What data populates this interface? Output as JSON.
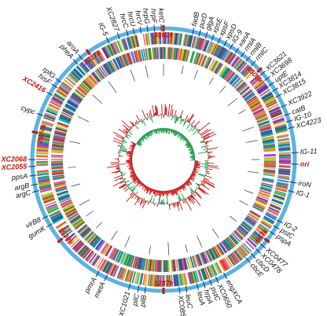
{
  "colors": {
    "outer_ring": "#5ab4e0",
    "marker": "#cc1111",
    "gc_skew_pos": "#cc1111",
    "gc_skew_neg": "#1a9a4a",
    "gc_content_pos": "#cc1111",
    "gc_content_neg": "#1a9a4a",
    "rna_tick": "#1a2a88",
    "gene_palette": [
      "#e23b3b",
      "#2b5fd9",
      "#22a35a",
      "#f2c230",
      "#9b47c9",
      "#f08a24",
      "#18b5c4",
      "#e05fb0",
      "#6b4a2b",
      "#8bc34a",
      "#3f3f9f",
      "#ff6f61",
      "#00897b",
      "#c0ca33",
      "#5d6d7e"
    ]
  },
  "positions": [
    {
      "text": "3861k",
      "angle": 0
    },
    {
      "text": "4505k",
      "angle": 47
    },
    {
      "text": "643k",
      "angle": 128
    },
    {
      "text": "1287k",
      "angle": 180
    },
    {
      "text": "1930k",
      "angle": 232
    },
    {
      "text": "2574k",
      "angle": 282
    },
    {
      "text": "3217k",
      "angle": 325
    }
  ],
  "red_genes": [
    {
      "text": "ori",
      "angle": 92
    },
    {
      "text": "XC2416",
      "angle": 300
    },
    {
      "text": "XC2068",
      "angle": 270
    },
    {
      "text": "XC2055",
      "angle": 267
    }
  ],
  "genes": [
    {
      "text": "fadB",
      "angle": 13
    },
    {
      "text": "purD",
      "angle": 16
    },
    {
      "text": "glgA",
      "angle": 19
    },
    {
      "text": "xpsE",
      "angle": 22
    },
    {
      "text": "xpsF",
      "angle": 25
    },
    {
      "text": "xpsD",
      "angle": 28
    },
    {
      "text": "IG-9",
      "angle": 31
    },
    {
      "text": "xanA",
      "angle": 34
    },
    {
      "text": "rmlA",
      "angle": 37
    },
    {
      "text": "rmlB",
      "angle": 40
    },
    {
      "text": "rmlC",
      "angle": 43
    },
    {
      "text": "XC3621",
      "angle": 49
    },
    {
      "text": "XC3698",
      "angle": 52
    },
    {
      "text": "uptE",
      "angle": 55
    },
    {
      "text": "XC3814",
      "angle": 58
    },
    {
      "text": "XC3815",
      "angle": 61
    },
    {
      "text": "XC3922",
      "angle": 66
    },
    {
      "text": "catB",
      "angle": 70
    },
    {
      "text": "IG-10",
      "angle": 73
    },
    {
      "text": "XC4223",
      "angle": 76
    },
    {
      "text": "IG-11",
      "angle": 87
    },
    {
      "text": "iroN",
      "angle": 100
    },
    {
      "text": "IG-1",
      "angle": 104
    },
    {
      "text": "IG-2",
      "angle": 118
    },
    {
      "text": "pstC",
      "angle": 121
    },
    {
      "text": "pspA",
      "angle": 124
    },
    {
      "text": "XC0477",
      "angle": 131
    },
    {
      "text": "XC0478",
      "angle": 134
    },
    {
      "text": "cbcD",
      "angle": 137
    },
    {
      "text": "cbcE",
      "angle": 140
    },
    {
      "text": "engXCA",
      "angle": 152
    },
    {
      "text": "XC0650",
      "angle": 156
    },
    {
      "text": "pstC",
      "angle": 159
    },
    {
      "text": "hrpA",
      "angle": 162
    },
    {
      "text": "leuA",
      "angle": 165
    },
    {
      "text": "leuC",
      "angle": 170
    },
    {
      "text": "XC0852",
      "angle": 173
    },
    {
      "text": "pilB",
      "angle": 188
    },
    {
      "text": "pilC",
      "angle": 191
    },
    {
      "text": "XC1021",
      "angle": 195
    },
    {
      "text": "metA",
      "angle": 206
    },
    {
      "text": "pmrA",
      "angle": 210
    },
    {
      "text": "gumK",
      "angle": 240
    },
    {
      "text": "virB8",
      "angle": 244
    },
    {
      "text": "argC",
      "angle": 256
    },
    {
      "text": "argB",
      "angle": 259
    },
    {
      "text": "ppsA",
      "angle": 263
    },
    {
      "text": "cypc",
      "angle": 290
    },
    {
      "text": "hisF",
      "angle": 304
    },
    {
      "text": "rpfG",
      "angle": 307
    },
    {
      "text": "pheA",
      "angle": 318
    },
    {
      "text": "aroA",
      "angle": 321
    },
    {
      "text": "IG-5",
      "angle": 335
    },
    {
      "text": "XC2827",
      "angle": 340
    },
    {
      "text": "hrcC",
      "angle": 344
    },
    {
      "text": "hrcU",
      "angle": 347
    },
    {
      "text": "hrcV",
      "angle": 350
    },
    {
      "text": "hrpG",
      "angle": 353
    },
    {
      "text": "hrpF",
      "angle": 356
    },
    {
      "text": "ketC",
      "angle": 359
    }
  ]
}
